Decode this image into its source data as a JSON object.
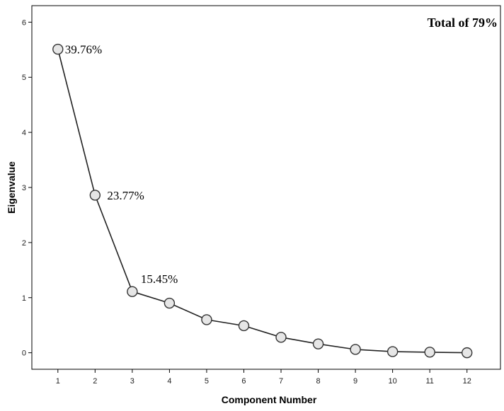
{
  "chart_data": {
    "type": "line",
    "x": [
      1,
      2,
      3,
      4,
      5,
      6,
      7,
      8,
      9,
      10,
      11,
      12
    ],
    "y": [
      5.51,
      2.86,
      1.11,
      0.9,
      0.6,
      0.49,
      0.28,
      0.16,
      0.06,
      0.02,
      0.01,
      0.0
    ],
    "xlabel": "Component Number",
    "ylabel": "Eigenvalue",
    "xticks": [
      "1",
      "2",
      "3",
      "4",
      "5",
      "6",
      "7",
      "8",
      "9",
      "10",
      "11",
      "12"
    ],
    "yticks": [
      "0",
      "1",
      "2",
      "3",
      "4",
      "5",
      "6"
    ],
    "xlim": [
      0.3,
      12.9
    ],
    "ylim": [
      -0.3,
      6.3
    ],
    "grid": false,
    "marker": "circle",
    "colors": {
      "line": "#222222",
      "marker_fill": "#e6e6e6",
      "marker_stroke": "#333333"
    },
    "annotations": [
      {
        "text": "39.76%",
        "x": 1,
        "y": 5.51
      },
      {
        "text": "23.77%",
        "x": 2,
        "y": 2.86
      },
      {
        "text": "15.45%",
        "x": 3,
        "y": 1.11
      }
    ],
    "total_label": "Total of 79%"
  }
}
